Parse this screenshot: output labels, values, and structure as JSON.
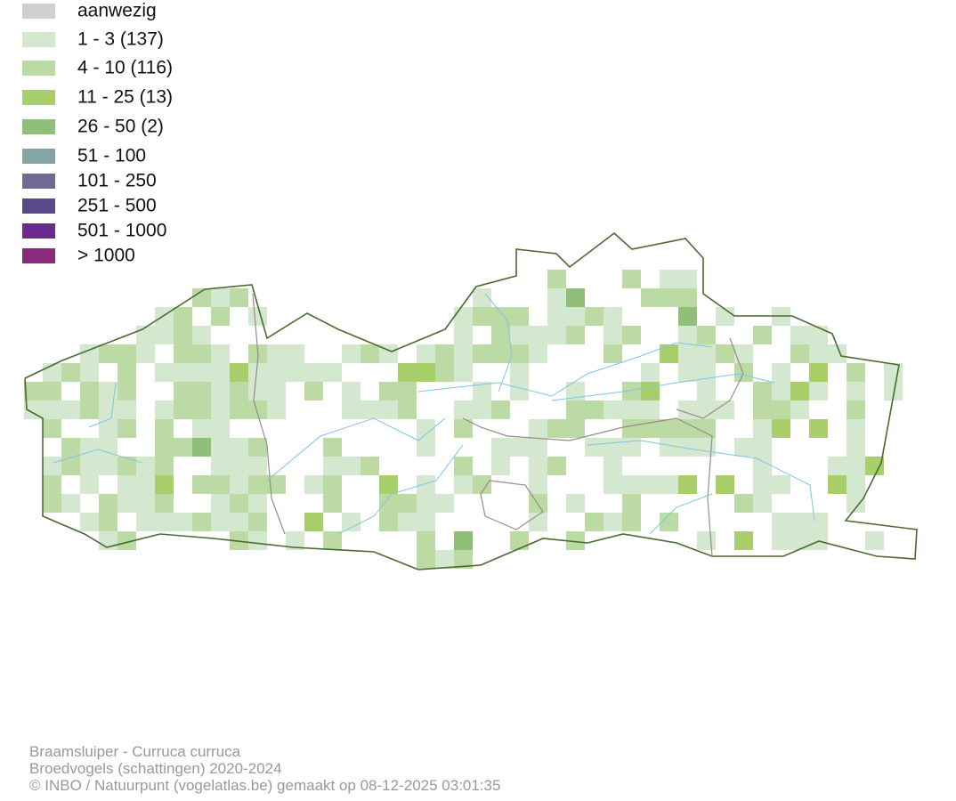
{
  "legend": {
    "entries": [
      {
        "label": "aanwezig",
        "color": "#d0d0d0"
      },
      {
        "label": "1 - 3 (137)",
        "color": "#d4e8cf"
      },
      {
        "label": "4 - 10 (116)",
        "color": "#bcdaa4"
      },
      {
        "label": "11 - 25 (13)",
        "color": "#a8cf6a"
      },
      {
        "label": "26 - 50 (2)",
        "color": "#8fbf78"
      },
      {
        "label": "51 - 100",
        "color": "#84a5a5"
      },
      {
        "label": "101 - 250",
        "color": "#6e6a96"
      },
      {
        "label": "251 - 500",
        "color": "#5a4a8a"
      },
      {
        "label": "501 - 1000",
        "color": "#6a2a8e"
      },
      {
        "label": "> 1000",
        "color": "#8a2a7a"
      }
    ]
  },
  "footer": {
    "lines": [
      "Braamsluiper - Curruca curruca",
      "Broedvogels (schattingen) 2020-2024",
      "© INBO / Natuurpunt (vogelatlas.be) gemaakt op 08-12-2025 03:01:35"
    ]
  }
}
